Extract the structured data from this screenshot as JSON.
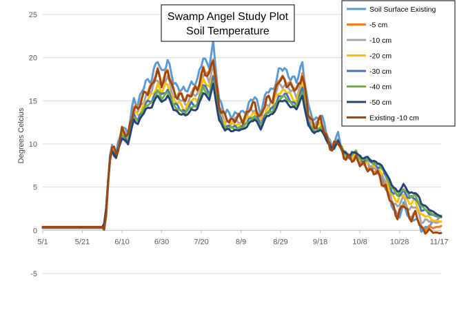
{
  "chart_data": {
    "type": "line",
    "title": [
      "Swamp Angel Study Plot",
      "Soil Temperature"
    ],
    "xlabel": "",
    "ylabel": "Degrees Celcius",
    "ylim": [
      -5,
      25
    ],
    "yticks": [
      -5,
      0,
      5,
      10,
      15,
      20,
      25
    ],
    "x_tick_labels": [
      "5/1",
      "5/21",
      "6/10",
      "6/30",
      "7/20",
      "8/9",
      "8/29",
      "9/18",
      "10/8",
      "10/28",
      "11/17"
    ],
    "xlim_days": [
      0,
      201
    ],
    "grid": "horizontal",
    "legend_position": "top-right",
    "series": [
      {
        "name": "Soil Surface Existing",
        "color": "#5b9bd5"
      },
      {
        "name": "-5 cm",
        "color": "#ed7d31"
      },
      {
        "name": "-10 cm",
        "color": "#a5a5a5"
      },
      {
        "name": "-20 cm",
        "color": "#ffc000"
      },
      {
        "name": "-30 cm",
        "color": "#4472c4"
      },
      {
        "name": "-40 cm",
        "color": "#70ad47"
      },
      {
        "name": "-50 cm",
        "color": "#264478"
      },
      {
        "name": "Existing -10 cm",
        "color": "#9e480e"
      }
    ],
    "shape_points": [
      [
        0,
        0.3
      ],
      [
        10,
        0.3
      ],
      [
        20,
        0.35
      ],
      [
        27,
        0.4
      ],
      [
        31,
        0.6
      ],
      [
        33,
        7.5
      ],
      [
        35,
        9.5
      ],
      [
        37,
        8.5
      ],
      [
        40,
        11.5
      ],
      [
        43,
        10.5
      ],
      [
        46,
        14
      ],
      [
        48,
        13.5
      ],
      [
        52,
        15.5
      ],
      [
        55,
        16
      ],
      [
        58,
        17.5
      ],
      [
        60,
        16.5
      ],
      [
        63,
        17.5
      ],
      [
        66,
        15.5
      ],
      [
        69,
        15
      ],
      [
        72,
        14.5
      ],
      [
        75,
        15.5
      ],
      [
        78,
        15.5
      ],
      [
        81,
        18
      ],
      [
        84,
        17
      ],
      [
        86,
        19
      ],
      [
        89,
        14
      ],
      [
        92,
        12.5
      ],
      [
        95,
        12.5
      ],
      [
        98,
        12.5
      ],
      [
        101,
        12.5
      ],
      [
        104,
        13.5
      ],
      [
        107,
        14
      ],
      [
        110,
        12.8
      ],
      [
        113,
        14.5
      ],
      [
        116,
        14.8
      ],
      [
        119,
        16.5
      ],
      [
        122,
        16.8
      ],
      [
        125,
        16
      ],
      [
        128,
        15.5
      ],
      [
        131,
        17.5
      ],
      [
        134,
        13
      ],
      [
        137,
        12
      ],
      [
        140,
        12.5
      ],
      [
        143,
        11
      ],
      [
        146,
        9.5
      ],
      [
        149,
        10.5
      ],
      [
        152,
        9
      ],
      [
        155,
        8.5
      ],
      [
        158,
        9
      ],
      [
        161,
        8
      ],
      [
        164,
        8
      ],
      [
        167,
        7.5
      ],
      [
        170,
        7
      ],
      [
        173,
        6
      ],
      [
        176,
        4
      ],
      [
        179,
        3
      ],
      [
        182,
        4
      ],
      [
        185,
        2.8
      ],
      [
        188,
        3
      ],
      [
        191,
        1.5
      ],
      [
        194,
        1.5
      ],
      [
        197,
        1.2
      ],
      [
        201,
        1.0
      ]
    ],
    "series_params": [
      {
        "amp": 1.22,
        "noise": 0.55,
        "warm_offset": 0.0,
        "cool_offset": -0.3,
        "end": 1.7
      },
      {
        "amp": 1.1,
        "noise": 0.55,
        "warm_offset": 0.0,
        "cool_offset": -0.6,
        "end": 0.5
      },
      {
        "amp": 1.02,
        "noise": 0.45,
        "warm_offset": 0.0,
        "cool_offset": -0.2,
        "end": 1.0
      },
      {
        "amp": 0.94,
        "noise": 0.38,
        "warm_offset": 0.0,
        "cool_offset": 0.0,
        "end": 1.0
      },
      {
        "amp": 0.88,
        "noise": 0.3,
        "warm_offset": 0.0,
        "cool_offset": 0.2,
        "end": 1.5
      },
      {
        "amp": 0.85,
        "noise": 0.22,
        "warm_offset": 0.0,
        "cool_offset": 0.3,
        "end": 1.5
      },
      {
        "amp": 0.8,
        "noise": 0.18,
        "warm_offset": 0.0,
        "cool_offset": 0.45,
        "end": 1.6
      },
      {
        "amp": 1.08,
        "noise": 0.65,
        "warm_offset": 0.0,
        "cool_offset": -0.8,
        "end": -0.3
      }
    ]
  }
}
